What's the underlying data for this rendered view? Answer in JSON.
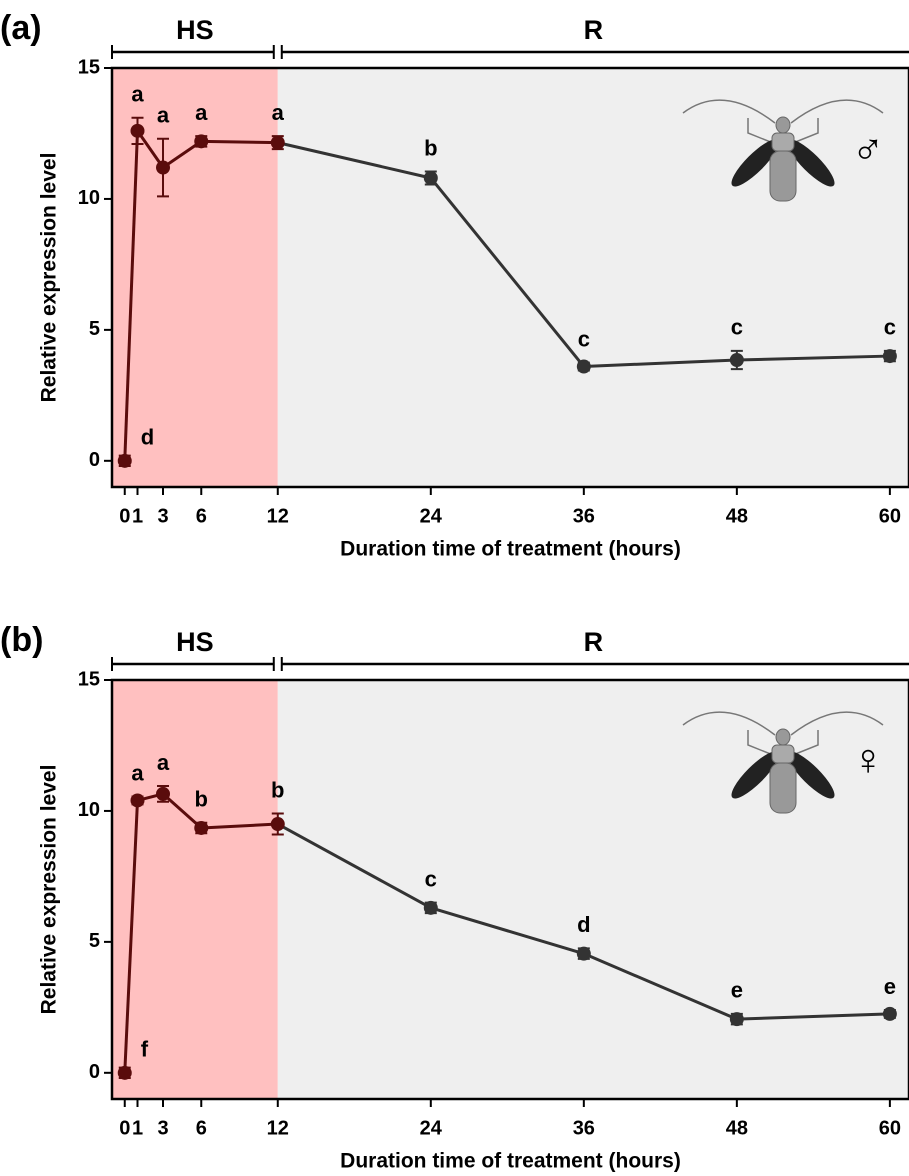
{
  "chart_data": [
    {
      "type": "line",
      "panel": "(a)",
      "xlabel": "Duration time of treatment (hours)",
      "ylabel": "Relative expression level",
      "x": [
        0,
        1,
        3,
        6,
        12,
        24,
        36,
        48,
        60
      ],
      "values": [
        0,
        12.6,
        11.2,
        12.2,
        12.15,
        10.8,
        3.6,
        3.85,
        4.0
      ],
      "errors": [
        0.2,
        0.5,
        1.1,
        0.2,
        0.25,
        0.25,
        0.15,
        0.35,
        0.2
      ],
      "point_labels": [
        "d",
        "a",
        "a",
        "a",
        "a",
        "b",
        "c",
        "c",
        "c"
      ],
      "regions": [
        {
          "label": "HS",
          "x": [
            -1,
            12
          ],
          "color": "#ffc0c0"
        },
        {
          "label": "R",
          "x": [
            12,
            61.5
          ],
          "color": "#efefef"
        }
      ],
      "xlim": [
        -1,
        61.5
      ],
      "ylim": [
        -1,
        15
      ],
      "xticks": [
        0,
        1,
        3,
        6,
        12,
        24,
        36,
        48,
        60
      ],
      "yticks": [
        0,
        5,
        10,
        15
      ],
      "color": "#333333",
      "hs_color": "#5a0c0c",
      "symbol": "♂"
    },
    {
      "type": "line",
      "panel": "(b)",
      "xlabel": "Duration time of treatment (hours)",
      "ylabel": "Relative expression level",
      "x": [
        0,
        1,
        3,
        6,
        12,
        24,
        36,
        48,
        60
      ],
      "values": [
        0,
        10.4,
        10.65,
        9.35,
        9.5,
        6.3,
        4.55,
        2.05,
        2.25
      ],
      "errors": [
        0.2,
        0.15,
        0.3,
        0.2,
        0.4,
        0.2,
        0.2,
        0.2,
        0.15
      ],
      "point_labels": [
        "f",
        "a",
        "a",
        "b",
        "b",
        "c",
        "d",
        "e",
        "e"
      ],
      "regions": [
        {
          "label": "HS",
          "x": [
            -1,
            12
          ],
          "color": "#ffc0c0"
        },
        {
          "label": "R",
          "x": [
            12,
            61.5
          ],
          "color": "#efefef"
        }
      ],
      "xlim": [
        -1,
        61.5
      ],
      "ylim": [
        -1,
        15
      ],
      "xticks": [
        0,
        1,
        3,
        6,
        12,
        24,
        36,
        48,
        60
      ],
      "yticks": [
        0,
        5,
        10,
        15
      ],
      "color": "#333333",
      "hs_color": "#5a0c0c",
      "symbol": "♀"
    }
  ]
}
